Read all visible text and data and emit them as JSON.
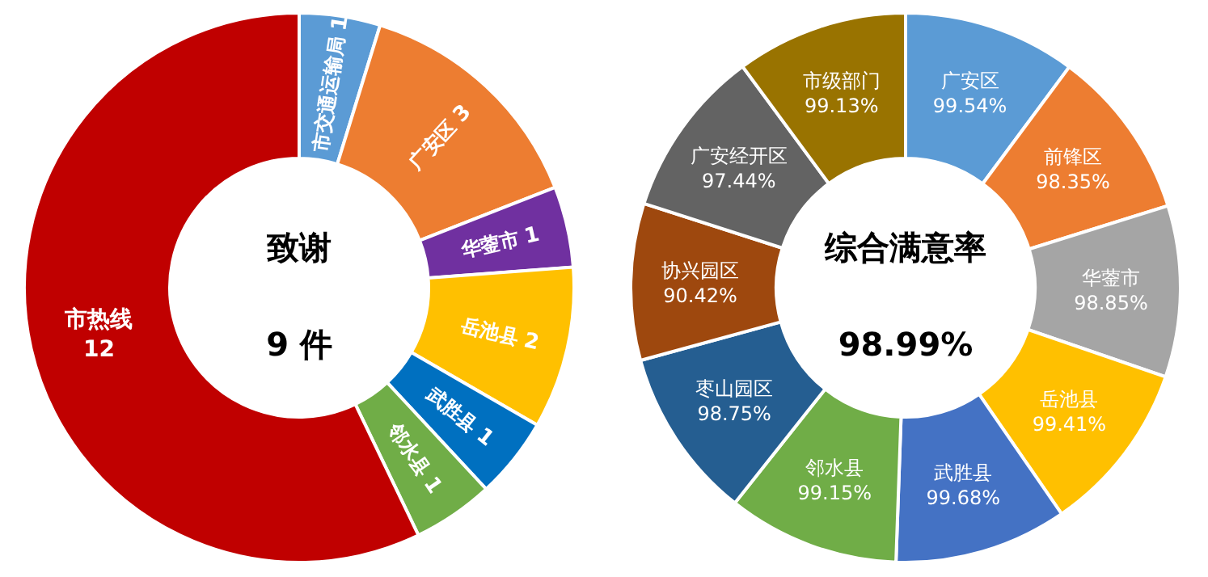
{
  "chart_data": [
    {
      "type": "donut",
      "title": "致谢",
      "annotations": [
        "9 件"
      ],
      "categories": [
        "市交通运输局",
        "广安区",
        "华蓥市",
        "岳池县",
        "武胜县",
        "邻水县",
        "市热线"
      ],
      "values": [
        1,
        3,
        1,
        2,
        1,
        1,
        12
      ],
      "colors": [
        "#5b9bd5",
        "#ed7d31",
        "#7030a0",
        "#ffc000",
        "#0070c0",
        "#70ad47",
        "#c00000"
      ],
      "data_labels": true
    },
    {
      "type": "donut",
      "title": "综合满意率",
      "annotations": [
        "98.99%"
      ],
      "categories": [
        "广安区",
        "前锋区",
        "华蓥市",
        "岳池县",
        "武胜县",
        "邻水县",
        "枣山园区",
        "协兴园区",
        "广安经开区",
        "市级部门"
      ],
      "values": [
        99.54,
        98.35,
        98.85,
        99.41,
        99.68,
        99.15,
        98.75,
        90.42,
        97.44,
        99.13
      ],
      "value_labels": [
        "99.54%",
        "98.35%",
        "98.85%",
        "99.41%",
        "99.68%",
        "99.15%",
        "98.75%",
        "90.42%",
        "97.44%",
        "99.13%"
      ],
      "colors": [
        "#5b9bd5",
        "#ed7d31",
        "#a5a5a5",
        "#ffc000",
        "#4472c4",
        "#70ad47",
        "#255e91",
        "#9e480e",
        "#636363",
        "#997300"
      ]
    }
  ]
}
